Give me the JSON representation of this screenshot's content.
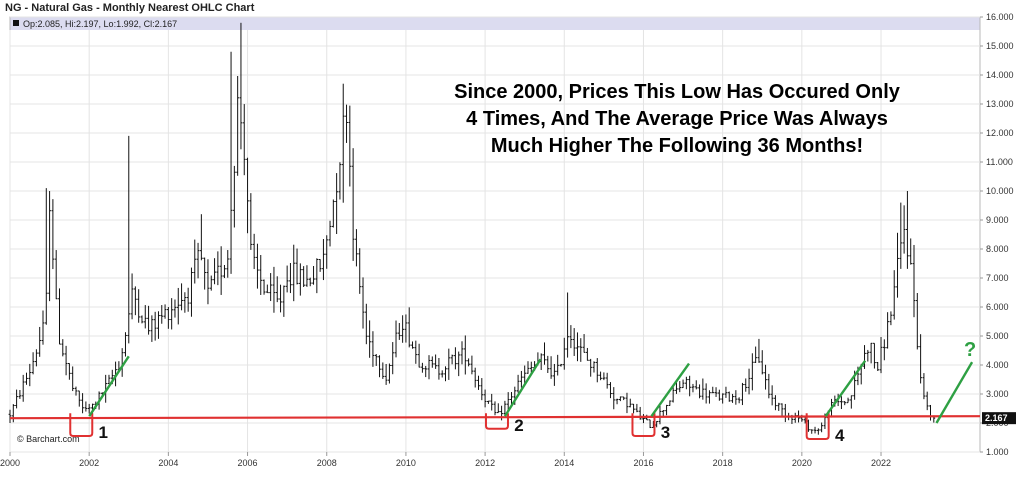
{
  "chart_data": {
    "type": "ohlc",
    "title": "NG - Natural Gas - Monthly Nearest OHLC Chart",
    "ohlc_readout": "Op:2.085, Hi:2.197, Lo:1.992, Cl:2.167",
    "copyright": "© Barchart.com",
    "annotation_lines": [
      "Since 2000, Prices This Low Has Occured Only",
      "4 Times, And The Average Price Was Always",
      "Much Higher The Following 36 Months!"
    ],
    "x_ticks": [
      "2000",
      "2002",
      "2004",
      "2006",
      "2008",
      "2010",
      "2012",
      "2014",
      "2016",
      "2018",
      "2020",
      "2022"
    ],
    "y_ticks": [
      "1.000",
      "2.000",
      "3.000",
      "4.000",
      "5.000",
      "6.000",
      "7.000",
      "8.000",
      "9.000",
      "10.000",
      "11.000",
      "12.000",
      "13.000",
      "14.000",
      "15.000",
      "16.000"
    ],
    "ylim": [
      1,
      16
    ],
    "xlim": [
      2000,
      2024.5
    ],
    "last_price_label": "2.167",
    "last_price": 2.167,
    "support_level": 2.2,
    "prices": [
      [
        2000.0,
        2.3
      ],
      [
        2000.5,
        3.8
      ],
      [
        2000.9,
        5.5
      ],
      [
        2001.0,
        9.8
      ],
      [
        2001.2,
        5.2
      ],
      [
        2001.6,
        3.1
      ],
      [
        2001.9,
        2.4
      ],
      [
        2002.1,
        2.6
      ],
      [
        2002.5,
        3.4
      ],
      [
        2002.8,
        4.2
      ],
      [
        2003.1,
        6.5
      ],
      [
        2003.5,
        5.2
      ],
      [
        2004.0,
        5.9
      ],
      [
        2004.5,
        6.5
      ],
      [
        2004.8,
        7.8
      ],
      [
        2005.0,
        6.4
      ],
      [
        2005.5,
        7.8
      ],
      [
        2005.75,
        13.0
      ],
      [
        2005.9,
        12.0
      ],
      [
        2006.1,
        7.5
      ],
      [
        2006.5,
        6.5
      ],
      [
        2006.8,
        6.1
      ],
      [
        2007.0,
        7.2
      ],
      [
        2007.5,
        6.9
      ],
      [
        2007.9,
        7.5
      ],
      [
        2008.2,
        10.0
      ],
      [
        2008.5,
        13.0
      ],
      [
        2008.7,
        8.0
      ],
      [
        2009.0,
        5.0
      ],
      [
        2009.5,
        3.6
      ],
      [
        2009.9,
        5.6
      ],
      [
        2010.3,
        4.2
      ],
      [
        2010.8,
        3.8
      ],
      [
        2011.2,
        4.2
      ],
      [
        2011.5,
        4.4
      ],
      [
        2011.9,
        3.1
      ],
      [
        2012.3,
        2.2
      ],
      [
        2012.6,
        2.8
      ],
      [
        2012.9,
        3.5
      ],
      [
        2013.4,
        4.2
      ],
      [
        2013.8,
        3.6
      ],
      [
        2014.1,
        5.2
      ],
      [
        2014.5,
        4.3
      ],
      [
        2014.9,
        3.7
      ],
      [
        2015.3,
        2.8
      ],
      [
        2015.6,
        2.7
      ],
      [
        2015.9,
        2.2
      ],
      [
        2016.2,
        1.9
      ],
      [
        2016.4,
        2.3
      ],
      [
        2016.7,
        2.9
      ],
      [
        2017.0,
        3.4
      ],
      [
        2017.4,
        3.1
      ],
      [
        2017.9,
        2.9
      ],
      [
        2018.4,
        2.9
      ],
      [
        2018.9,
        4.3
      ],
      [
        2019.2,
        2.9
      ],
      [
        2019.6,
        2.3
      ],
      [
        2019.9,
        2.2
      ],
      [
        2020.3,
        1.7
      ],
      [
        2020.5,
        1.9
      ],
      [
        2020.8,
        2.7
      ],
      [
        2021.2,
        2.8
      ],
      [
        2021.7,
        4.8
      ],
      [
        2021.9,
        3.8
      ],
      [
        2022.2,
        5.5
      ],
      [
        2022.6,
        8.8
      ],
      [
        2022.8,
        6.8
      ],
      [
        2023.0,
        3.5
      ],
      [
        2023.2,
        2.3
      ],
      [
        2023.35,
        2.167
      ]
    ],
    "low_events": [
      {
        "label": "1",
        "x": 2001.8,
        "bottom": 1.55,
        "arrow_to": [
          2003.0,
          4.3
        ]
      },
      {
        "label": "2",
        "x": 2012.3,
        "bottom": 1.8,
        "arrow_to": [
          2013.4,
          4.2
        ]
      },
      {
        "label": "3",
        "x": 2016.0,
        "bottom": 1.55,
        "arrow_to": [
          2017.15,
          4.05
        ]
      },
      {
        "label": "4",
        "x": 2020.4,
        "bottom": 1.45,
        "arrow_to": [
          2021.6,
          4.15
        ]
      },
      {
        "label": "?",
        "x": 2023.35,
        "bottom": 2.0,
        "arrow_to": [
          2024.3,
          4.1
        ]
      }
    ],
    "colors": {
      "bars": "#111111",
      "support": "#e03131",
      "boxes": "#e03131",
      "arrows": "#2ea043",
      "header": "#dcdcf0",
      "grid": "#e4e4e4",
      "last_label_bg": "#111111"
    },
    "grid": true
  }
}
